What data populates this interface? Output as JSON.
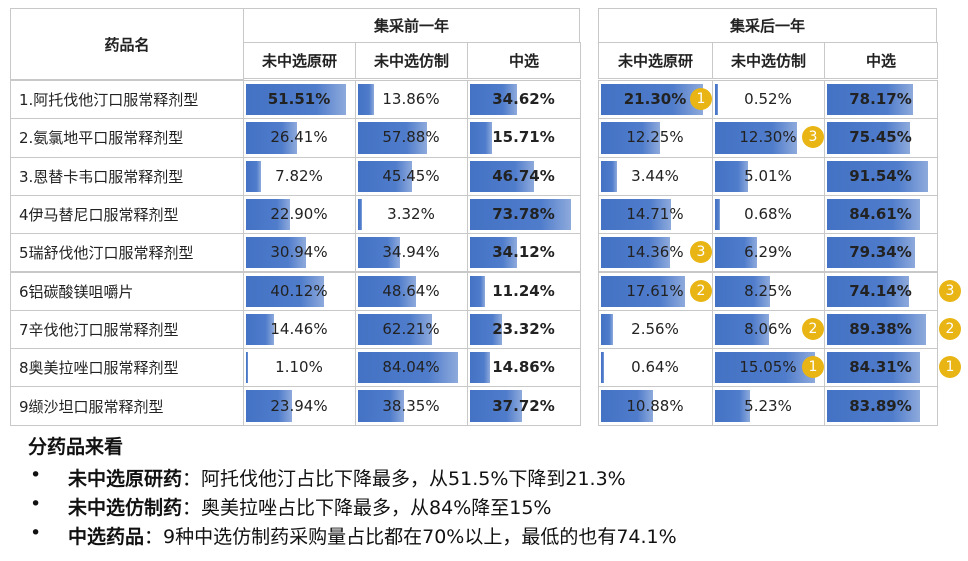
{
  "table": {
    "header": {
      "name": "药品名",
      "groups": [
        "集采前一年",
        "集采后一年"
      ],
      "columns": [
        "未中选原研",
        "未中选仿制",
        "中选",
        "未中选原研",
        "未中选仿制",
        "中选"
      ]
    },
    "rows": [
      {
        "name": "1.阿托伐他汀口服常释剂型",
        "cells": [
          {
            "value": 51.51,
            "label": "51.51%",
            "bold": true
          },
          {
            "value": 13.86,
            "label": "13.86%"
          },
          {
            "value": 34.62,
            "label": "34.62%",
            "bold": true
          },
          {
            "value": 21.3,
            "label": "21.30%",
            "bold": true,
            "badge": 1
          },
          {
            "value": 0.52,
            "label": "0.52%"
          },
          {
            "value": 78.17,
            "label": "78.17%",
            "bold": true
          }
        ]
      },
      {
        "name": "2.氨氯地平口服常释剂型",
        "cells": [
          {
            "value": 26.41,
            "label": "26.41%"
          },
          {
            "value": 57.88,
            "label": "57.88%"
          },
          {
            "value": 15.71,
            "label": "15.71%",
            "bold": true
          },
          {
            "value": 12.25,
            "label": "12.25%"
          },
          {
            "value": 12.3,
            "label": "12.30%",
            "badge": 3
          },
          {
            "value": 75.45,
            "label": "75.45%",
            "bold": true
          }
        ]
      },
      {
        "name": "3.恩替卡韦口服常释剂型",
        "cells": [
          {
            "value": 7.82,
            "label": "7.82%"
          },
          {
            "value": 45.45,
            "label": "45.45%"
          },
          {
            "value": 46.74,
            "label": "46.74%",
            "bold": true
          },
          {
            "value": 3.44,
            "label": "3.44%"
          },
          {
            "value": 5.01,
            "label": "5.01%"
          },
          {
            "value": 91.54,
            "label": "91.54%",
            "bold": true
          }
        ]
      },
      {
        "name": "4伊马替尼口服常释剂型",
        "cells": [
          {
            "value": 22.9,
            "label": "22.90%"
          },
          {
            "value": 3.32,
            "label": "3.32%"
          },
          {
            "value": 73.78,
            "label": "73.78%",
            "bold": true
          },
          {
            "value": 14.71,
            "label": "14.71%"
          },
          {
            "value": 0.68,
            "label": "0.68%"
          },
          {
            "value": 84.61,
            "label": "84.61%",
            "bold": true
          }
        ]
      },
      {
        "name": "5瑞舒伐他汀口服常释剂型",
        "cells": [
          {
            "value": 30.94,
            "label": "30.94%"
          },
          {
            "value": 34.94,
            "label": "34.94%"
          },
          {
            "value": 34.12,
            "label": "34.12%",
            "bold": true
          },
          {
            "value": 14.36,
            "label": "14.36%",
            "badge": 3
          },
          {
            "value": 6.29,
            "label": "6.29%"
          },
          {
            "value": 79.34,
            "label": "79.34%",
            "bold": true
          }
        ]
      },
      {
        "name": "6铝碳酸镁咀嚼片",
        "cells": [
          {
            "value": 40.12,
            "label": "40.12%"
          },
          {
            "value": 48.64,
            "label": "48.64%"
          },
          {
            "value": 11.24,
            "label": "11.24%",
            "bold": true
          },
          {
            "value": 17.61,
            "label": "17.61%",
            "badge": 2
          },
          {
            "value": 8.25,
            "label": "8.25%"
          },
          {
            "value": 74.14,
            "label": "74.14%",
            "bold": true,
            "badge": 3
          }
        ]
      },
      {
        "name": "7辛伐他汀口服常释剂型",
        "cells": [
          {
            "value": 14.46,
            "label": "14.46%"
          },
          {
            "value": 62.21,
            "label": "62.21%"
          },
          {
            "value": 23.32,
            "label": "23.32%",
            "bold": true
          },
          {
            "value": 2.56,
            "label": "2.56%"
          },
          {
            "value": 8.06,
            "label": "8.06%",
            "badge": 2
          },
          {
            "value": 89.38,
            "label": "89.38%",
            "bold": true,
            "badge": 2
          }
        ]
      },
      {
        "name": "8奥美拉唑口服常释剂型",
        "cells": [
          {
            "value": 1.1,
            "label": "1.10%"
          },
          {
            "value": 84.04,
            "label": "84.04%"
          },
          {
            "value": 14.86,
            "label": "14.86%",
            "bold": true
          },
          {
            "value": 0.64,
            "label": "0.64%"
          },
          {
            "value": 15.05,
            "label": "15.05%",
            "badge": 1
          },
          {
            "value": 84.31,
            "label": "84.31%",
            "bold": true,
            "badge": 1
          }
        ]
      },
      {
        "name": "9缬沙坦口服常释剂型",
        "cells": [
          {
            "value": 23.94,
            "label": "23.94%"
          },
          {
            "value": 38.35,
            "label": "38.35%"
          },
          {
            "value": 37.72,
            "label": "37.72%",
            "bold": true
          },
          {
            "value": 10.88,
            "label": "10.88%"
          },
          {
            "value": 5.23,
            "label": "5.23%"
          },
          {
            "value": 83.89,
            "label": "83.89%",
            "bold": true
          }
        ]
      }
    ]
  },
  "summary": {
    "title": "分药品来看",
    "items": [
      {
        "label": "未中选原研药",
        "text": "：阿托伐他汀占比下降最多，从51.5%下降到21.3%"
      },
      {
        "label": "未中选仿制药",
        "text": "：奥美拉唑占比下降最多，从84%降至15%"
      },
      {
        "label": "中选药品",
        "text": "：9种中选仿制药采购量占比都在70%以上，最低的也有74.1%"
      }
    ]
  }
}
